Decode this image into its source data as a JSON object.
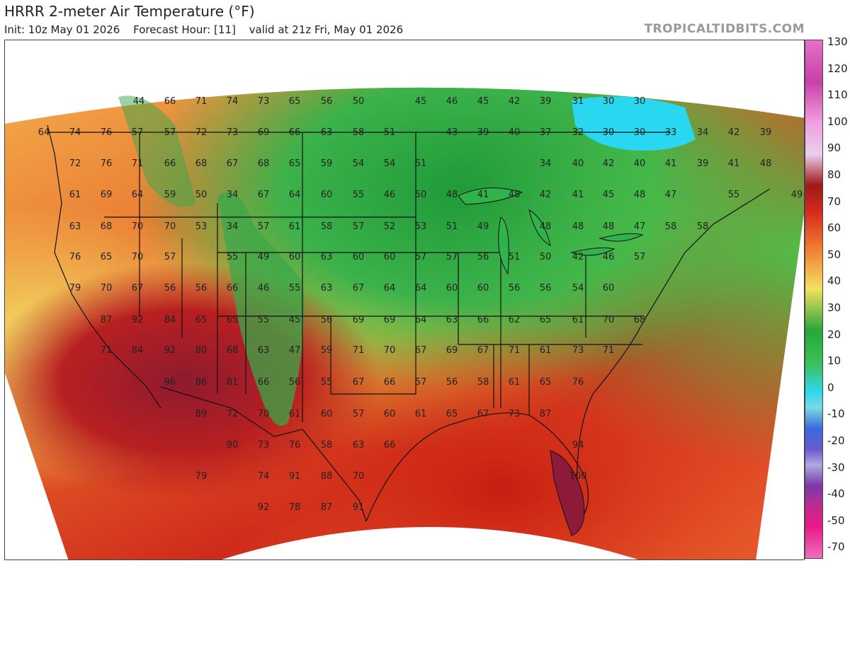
{
  "header": {
    "title": "HRRR 2-meter Air Temperature (°F)",
    "init": "Init: 10z May 01 2026",
    "forecast_hour": "Forecast Hour: [11]",
    "valid": "valid at 21z Fri, May 01 2026",
    "brand": "TROPICALTIDBITS.COM"
  },
  "colorbar": {
    "labels": [
      "130",
      "120",
      "110",
      "100",
      "90",
      "80",
      "70",
      "60",
      "50",
      "40",
      "30",
      "20",
      "10",
      "0",
      "-10",
      "-20",
      "-30",
      "-40",
      "-50",
      "-70"
    ],
    "colors": [
      "#ff7fbf",
      "#ff1f9a",
      "#c8196b",
      "#9a2a8f",
      "#7b4aa6",
      "#cfc7e6",
      "#5a5fc8",
      "#2746c8",
      "#1b7fe0",
      "#22d3f0",
      "#2ea82e",
      "#3fbf3f",
      "#e8ef64",
      "#f6c13a",
      "#f08a2c",
      "#e14a1e",
      "#c21818",
      "#8e2a7a",
      "#b54aa8",
      "#e8a7e0"
    ]
  },
  "temps": [
    {
      "t": "44",
      "c": [
        195,
        142
      ]
    },
    {
      "t": "66",
      "c": [
        239,
        142
      ]
    },
    {
      "t": "71",
      "c": [
        283,
        142
      ]
    },
    {
      "t": "74",
      "c": [
        327,
        142
      ]
    },
    {
      "t": "73",
      "c": [
        371,
        142
      ]
    },
    {
      "t": "65",
      "c": [
        415,
        142
      ]
    },
    {
      "t": "56",
      "c": [
        460,
        142
      ]
    },
    {
      "t": "50",
      "c": [
        505,
        142
      ]
    },
    {
      "t": "45",
      "c": [
        593,
        142
      ]
    },
    {
      "t": "46",
      "c": [
        637,
        142
      ]
    },
    {
      "t": "45",
      "c": [
        681,
        142
      ]
    },
    {
      "t": "42",
      "c": [
        725,
        142
      ]
    },
    {
      "t": "39",
      "c": [
        769,
        142
      ]
    },
    {
      "t": "31",
      "c": [
        815,
        142
      ]
    },
    {
      "t": "30",
      "c": [
        858,
        142
      ]
    },
    {
      "t": "30",
      "c": [
        902,
        142
      ]
    },
    {
      "t": "64",
      "c": [
        61,
        186
      ]
    },
    {
      "t": "74",
      "c": [
        105,
        186
      ]
    },
    {
      "t": "76",
      "c": [
        149,
        186
      ]
    },
    {
      "t": "57",
      "c": [
        193,
        186
      ]
    },
    {
      "t": "57",
      "c": [
        239,
        186
      ]
    },
    {
      "t": "72",
      "c": [
        283,
        186
      ]
    },
    {
      "t": "73",
      "c": [
        327,
        186
      ]
    },
    {
      "t": "69",
      "c": [
        371,
        186
      ]
    },
    {
      "t": "66",
      "c": [
        415,
        186
      ]
    },
    {
      "t": "63",
      "c": [
        460,
        186
      ]
    },
    {
      "t": "58",
      "c": [
        505,
        186
      ]
    },
    {
      "t": "51",
      "c": [
        549,
        186
      ]
    },
    {
      "t": "43",
      "c": [
        637,
        186
      ]
    },
    {
      "t": "39",
      "c": [
        681,
        186
      ]
    },
    {
      "t": "40",
      "c": [
        725,
        186
      ]
    },
    {
      "t": "37",
      "c": [
        769,
        186
      ]
    },
    {
      "t": "32",
      "c": [
        815,
        186
      ]
    },
    {
      "t": "30",
      "c": [
        858,
        186
      ]
    },
    {
      "t": "30",
      "c": [
        902,
        186
      ]
    },
    {
      "t": "33",
      "c": [
        946,
        186
      ]
    },
    {
      "t": "34",
      "c": [
        991,
        186
      ]
    },
    {
      "t": "42",
      "c": [
        1035,
        186
      ]
    },
    {
      "t": "39",
      "c": [
        1080,
        186
      ]
    },
    {
      "t": "72",
      "c": [
        105,
        230
      ]
    },
    {
      "t": "76",
      "c": [
        149,
        230
      ]
    },
    {
      "t": "71",
      "c": [
        193,
        230
      ]
    },
    {
      "t": "66",
      "c": [
        239,
        230
      ]
    },
    {
      "t": "68",
      "c": [
        283,
        230
      ]
    },
    {
      "t": "67",
      "c": [
        327,
        230
      ]
    },
    {
      "t": "68",
      "c": [
        371,
        230
      ]
    },
    {
      "t": "65",
      "c": [
        415,
        230
      ]
    },
    {
      "t": "59",
      "c": [
        460,
        230
      ]
    },
    {
      "t": "54",
      "c": [
        505,
        230
      ]
    },
    {
      "t": "54",
      "c": [
        549,
        230
      ]
    },
    {
      "t": "51",
      "c": [
        593,
        230
      ]
    },
    {
      "t": "34",
      "c": [
        769,
        230
      ]
    },
    {
      "t": "40",
      "c": [
        815,
        230
      ]
    },
    {
      "t": "42",
      "c": [
        858,
        230
      ]
    },
    {
      "t": "40",
      "c": [
        902,
        230
      ]
    },
    {
      "t": "41",
      "c": [
        946,
        230
      ]
    },
    {
      "t": "39",
      "c": [
        991,
        230
      ]
    },
    {
      "t": "41",
      "c": [
        1035,
        230
      ]
    },
    {
      "t": "48",
      "c": [
        1080,
        230
      ]
    },
    {
      "t": "61",
      "c": [
        105,
        274
      ]
    },
    {
      "t": "69",
      "c": [
        149,
        274
      ]
    },
    {
      "t": "64",
      "c": [
        193,
        274
      ]
    },
    {
      "t": "59",
      "c": [
        239,
        274
      ]
    },
    {
      "t": "50",
      "c": [
        283,
        274
      ]
    },
    {
      "t": "34",
      "c": [
        327,
        274
      ]
    },
    {
      "t": "67",
      "c": [
        371,
        274
      ]
    },
    {
      "t": "64",
      "c": [
        415,
        274
      ]
    },
    {
      "t": "60",
      "c": [
        460,
        274
      ]
    },
    {
      "t": "55",
      "c": [
        505,
        274
      ]
    },
    {
      "t": "46",
      "c": [
        549,
        274
      ]
    },
    {
      "t": "50",
      "c": [
        593,
        274
      ]
    },
    {
      "t": "48",
      "c": [
        637,
        274
      ]
    },
    {
      "t": "41",
      "c": [
        681,
        274
      ]
    },
    {
      "t": "48",
      "c": [
        725,
        274
      ]
    },
    {
      "t": "42",
      "c": [
        769,
        274
      ]
    },
    {
      "t": "41",
      "c": [
        815,
        274
      ]
    },
    {
      "t": "45",
      "c": [
        858,
        274
      ]
    },
    {
      "t": "48",
      "c": [
        902,
        274
      ]
    },
    {
      "t": "47",
      "c": [
        946,
        274
      ]
    },
    {
      "t": "55",
      "c": [
        1035,
        274
      ]
    },
    {
      "t": "49",
      "c": [
        1124,
        274
      ]
    },
    {
      "t": "63",
      "c": [
        105,
        319
      ]
    },
    {
      "t": "68",
      "c": [
        149,
        319
      ]
    },
    {
      "t": "70",
      "c": [
        193,
        319
      ]
    },
    {
      "t": "70",
      "c": [
        239,
        319
      ]
    },
    {
      "t": "53",
      "c": [
        283,
        319
      ]
    },
    {
      "t": "34",
      "c": [
        327,
        319
      ]
    },
    {
      "t": "57",
      "c": [
        371,
        319
      ]
    },
    {
      "t": "61",
      "c": [
        415,
        319
      ]
    },
    {
      "t": "58",
      "c": [
        460,
        319
      ]
    },
    {
      "t": "57",
      "c": [
        505,
        319
      ]
    },
    {
      "t": "52",
      "c": [
        549,
        319
      ]
    },
    {
      "t": "53",
      "c": [
        593,
        319
      ]
    },
    {
      "t": "51",
      "c": [
        637,
        319
      ]
    },
    {
      "t": "49",
      "c": [
        681,
        319
      ]
    },
    {
      "t": "48",
      "c": [
        769,
        319
      ]
    },
    {
      "t": "48",
      "c": [
        815,
        319
      ]
    },
    {
      "t": "48",
      "c": [
        858,
        319
      ]
    },
    {
      "t": "47",
      "c": [
        902,
        319
      ]
    },
    {
      "t": "58",
      "c": [
        946,
        319
      ]
    },
    {
      "t": "58",
      "c": [
        991,
        319
      ]
    },
    {
      "t": "76",
      "c": [
        105,
        362
      ]
    },
    {
      "t": "65",
      "c": [
        149,
        362
      ]
    },
    {
      "t": "70",
      "c": [
        193,
        362
      ]
    },
    {
      "t": "57",
      "c": [
        239,
        362
      ]
    },
    {
      "t": "55",
      "c": [
        327,
        362
      ]
    },
    {
      "t": "49",
      "c": [
        371,
        362
      ]
    },
    {
      "t": "60",
      "c": [
        415,
        362
      ]
    },
    {
      "t": "63",
      "c": [
        460,
        362
      ]
    },
    {
      "t": "60",
      "c": [
        505,
        362
      ]
    },
    {
      "t": "60",
      "c": [
        549,
        362
      ]
    },
    {
      "t": "57",
      "c": [
        593,
        362
      ]
    },
    {
      "t": "57",
      "c": [
        637,
        362
      ]
    },
    {
      "t": "56",
      "c": [
        681,
        362
      ]
    },
    {
      "t": "51",
      "c": [
        725,
        362
      ]
    },
    {
      "t": "50",
      "c": [
        769,
        362
      ]
    },
    {
      "t": "42",
      "c": [
        815,
        362
      ]
    },
    {
      "t": "46",
      "c": [
        858,
        362
      ]
    },
    {
      "t": "57",
      "c": [
        902,
        362
      ]
    },
    {
      "t": "79",
      "c": [
        105,
        406
      ]
    },
    {
      "t": "70",
      "c": [
        149,
        406
      ]
    },
    {
      "t": "67",
      "c": [
        193,
        406
      ]
    },
    {
      "t": "56",
      "c": [
        239,
        406
      ]
    },
    {
      "t": "56",
      "c": [
        283,
        406
      ]
    },
    {
      "t": "66",
      "c": [
        327,
        406
      ]
    },
    {
      "t": "46",
      "c": [
        371,
        406
      ]
    },
    {
      "t": "55",
      "c": [
        415,
        406
      ]
    },
    {
      "t": "63",
      "c": [
        460,
        406
      ]
    },
    {
      "t": "67",
      "c": [
        505,
        406
      ]
    },
    {
      "t": "64",
      "c": [
        549,
        406
      ]
    },
    {
      "t": "64",
      "c": [
        593,
        406
      ]
    },
    {
      "t": "60",
      "c": [
        637,
        406
      ]
    },
    {
      "t": "60",
      "c": [
        681,
        406
      ]
    },
    {
      "t": "56",
      "c": [
        725,
        406
      ]
    },
    {
      "t": "56",
      "c": [
        769,
        406
      ]
    },
    {
      "t": "54",
      "c": [
        815,
        406
      ]
    },
    {
      "t": "60",
      "c": [
        858,
        406
      ]
    },
    {
      "t": "87",
      "c": [
        149,
        451
      ]
    },
    {
      "t": "92",
      "c": [
        193,
        451
      ]
    },
    {
      "t": "84",
      "c": [
        239,
        451
      ]
    },
    {
      "t": "65",
      "c": [
        283,
        451
      ]
    },
    {
      "t": "65",
      "c": [
        327,
        451
      ]
    },
    {
      "t": "55",
      "c": [
        371,
        451
      ]
    },
    {
      "t": "45",
      "c": [
        415,
        451
      ]
    },
    {
      "t": "56",
      "c": [
        460,
        451
      ]
    },
    {
      "t": "69",
      "c": [
        505,
        451
      ]
    },
    {
      "t": "69",
      "c": [
        549,
        451
      ]
    },
    {
      "t": "64",
      "c": [
        593,
        451
      ]
    },
    {
      "t": "63",
      "c": [
        637,
        451
      ]
    },
    {
      "t": "66",
      "c": [
        681,
        451
      ]
    },
    {
      "t": "62",
      "c": [
        725,
        451
      ]
    },
    {
      "t": "65",
      "c": [
        769,
        451
      ]
    },
    {
      "t": "61",
      "c": [
        815,
        451
      ]
    },
    {
      "t": "70",
      "c": [
        858,
        451
      ]
    },
    {
      "t": "68",
      "c": [
        902,
        451
      ]
    },
    {
      "t": "71",
      "c": [
        149,
        494
      ]
    },
    {
      "t": "84",
      "c": [
        193,
        494
      ]
    },
    {
      "t": "92",
      "c": [
        239,
        494
      ]
    },
    {
      "t": "80",
      "c": [
        283,
        494
      ]
    },
    {
      "t": "68",
      "c": [
        327,
        494
      ]
    },
    {
      "t": "63",
      "c": [
        371,
        494
      ]
    },
    {
      "t": "47",
      "c": [
        415,
        494
      ]
    },
    {
      "t": "59",
      "c": [
        460,
        494
      ]
    },
    {
      "t": "71",
      "c": [
        505,
        494
      ]
    },
    {
      "t": "70",
      "c": [
        549,
        494
      ]
    },
    {
      "t": "67",
      "c": [
        593,
        494
      ]
    },
    {
      "t": "69",
      "c": [
        637,
        494
      ]
    },
    {
      "t": "67",
      "c": [
        681,
        494
      ]
    },
    {
      "t": "71",
      "c": [
        725,
        494
      ]
    },
    {
      "t": "61",
      "c": [
        769,
        494
      ]
    },
    {
      "t": "73",
      "c": [
        815,
        494
      ]
    },
    {
      "t": "71",
      "c": [
        858,
        494
      ]
    },
    {
      "t": "96",
      "c": [
        239,
        539
      ]
    },
    {
      "t": "86",
      "c": [
        283,
        539
      ]
    },
    {
      "t": "81",
      "c": [
        327,
        539
      ]
    },
    {
      "t": "66",
      "c": [
        371,
        539
      ]
    },
    {
      "t": "56",
      "c": [
        415,
        539
      ]
    },
    {
      "t": "55",
      "c": [
        460,
        539
      ]
    },
    {
      "t": "67",
      "c": [
        505,
        539
      ]
    },
    {
      "t": "66",
      "c": [
        549,
        539
      ]
    },
    {
      "t": "57",
      "c": [
        593,
        539
      ]
    },
    {
      "t": "56",
      "c": [
        637,
        539
      ]
    },
    {
      "t": "58",
      "c": [
        681,
        539
      ]
    },
    {
      "t": "61",
      "c": [
        725,
        539
      ]
    },
    {
      "t": "65",
      "c": [
        769,
        539
      ]
    },
    {
      "t": "76",
      "c": [
        815,
        539
      ]
    },
    {
      "t": "89",
      "c": [
        283,
        584
      ]
    },
    {
      "t": "72",
      "c": [
        327,
        584
      ]
    },
    {
      "t": "70",
      "c": [
        371,
        584
      ]
    },
    {
      "t": "61",
      "c": [
        415,
        584
      ]
    },
    {
      "t": "60",
      "c": [
        460,
        584
      ]
    },
    {
      "t": "57",
      "c": [
        505,
        584
      ]
    },
    {
      "t": "60",
      "c": [
        549,
        584
      ]
    },
    {
      "t": "61",
      "c": [
        593,
        584
      ]
    },
    {
      "t": "65",
      "c": [
        637,
        584
      ]
    },
    {
      "t": "67",
      "c": [
        681,
        584
      ]
    },
    {
      "t": "73",
      "c": [
        725,
        584
      ]
    },
    {
      "t": "87",
      "c": [
        769,
        584
      ]
    },
    {
      "t": "90",
      "c": [
        327,
        628
      ]
    },
    {
      "t": "73",
      "c": [
        371,
        628
      ]
    },
    {
      "t": "76",
      "c": [
        415,
        628
      ]
    },
    {
      "t": "58",
      "c": [
        460,
        628
      ]
    },
    {
      "t": "63",
      "c": [
        505,
        628
      ]
    },
    {
      "t": "66",
      "c": [
        549,
        628
      ]
    },
    {
      "t": "94",
      "c": [
        815,
        628
      ]
    },
    {
      "t": "79",
      "c": [
        283,
        672
      ]
    },
    {
      "t": "74",
      "c": [
        371,
        672
      ]
    },
    {
      "t": "91",
      "c": [
        415,
        672
      ]
    },
    {
      "t": "88",
      "c": [
        460,
        672
      ]
    },
    {
      "t": "70",
      "c": [
        505,
        672
      ]
    },
    {
      "t": "100",
      "c": [
        815,
        672
      ]
    },
    {
      "t": "92",
      "c": [
        371,
        716
      ]
    },
    {
      "t": "78",
      "c": [
        415,
        716
      ]
    },
    {
      "t": "87",
      "c": [
        460,
        716
      ]
    },
    {
      "t": "91",
      "c": [
        505,
        716
      ]
    }
  ]
}
